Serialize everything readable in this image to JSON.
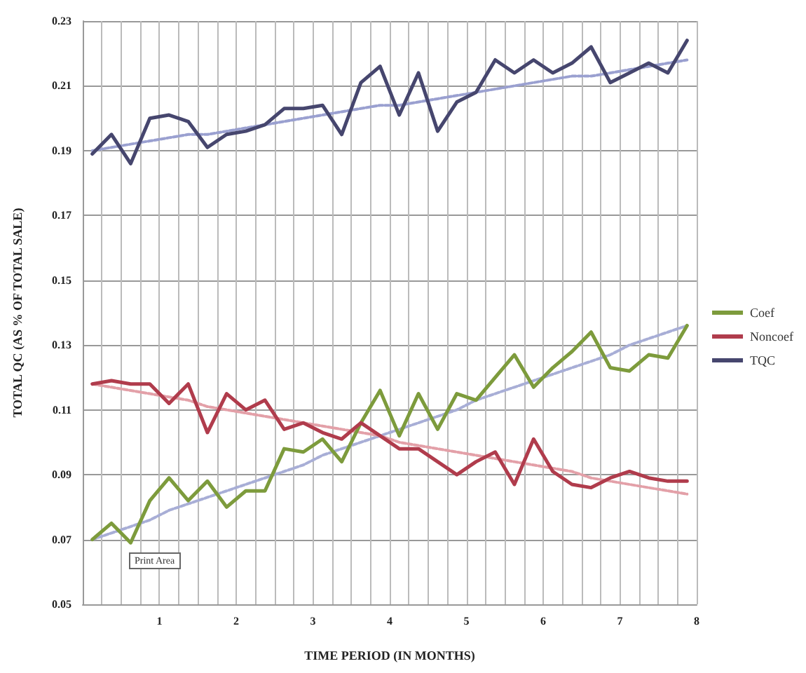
{
  "chart_data": {
    "type": "line",
    "xlabel": "TIME PERIOD (IN MONTHS)",
    "ylabel": "TOTAL QC (AS % OF TOTAL SALE)",
    "xlim": [
      0,
      8
    ],
    "ylim": [
      0.05,
      0.23
    ],
    "xticks": [
      {
        "value": 0.25,
        "label": null
      },
      {
        "value": 0.5,
        "label": null
      },
      {
        "value": 0.75,
        "label": null
      },
      1,
      {
        "value": 1.25,
        "label": null
      },
      {
        "value": 1.5,
        "label": null
      },
      {
        "value": 1.75,
        "label": null
      },
      2,
      {
        "value": 2.25,
        "label": null
      },
      {
        "value": 2.5,
        "label": null
      },
      {
        "value": 2.75,
        "label": null
      },
      3,
      {
        "value": 3.25,
        "label": null
      },
      {
        "value": 3.5,
        "label": null
      },
      {
        "value": 3.75,
        "label": null
      },
      4,
      {
        "value": 4.25,
        "label": null
      },
      {
        "value": 4.5,
        "label": null
      },
      {
        "value": 4.75,
        "label": null
      },
      5,
      {
        "value": 5.25,
        "label": null
      },
      {
        "value": 5.5,
        "label": null
      },
      {
        "value": 5.75,
        "label": null
      },
      6,
      {
        "value": 6.25,
        "label": null
      },
      {
        "value": 6.5,
        "label": null
      },
      {
        "value": 6.75,
        "label": null
      },
      7,
      {
        "value": 7.25,
        "label": null
      },
      {
        "value": 7.5,
        "label": null
      },
      {
        "value": 7.75,
        "label": null
      },
      8
    ],
    "yticks": [
      0.05,
      0.07,
      0.09,
      0.11,
      0.13,
      0.15,
      0.17,
      0.19,
      0.21,
      0.23
    ],
    "x": [
      0.125,
      0.375,
      0.625,
      0.875,
      1.125,
      1.375,
      1.625,
      1.875,
      2.125,
      2.375,
      2.625,
      2.875,
      3.125,
      3.375,
      3.625,
      3.875,
      4.125,
      4.375,
      4.625,
      4.875,
      5.125,
      5.375,
      5.625,
      5.875,
      6.125,
      6.375,
      6.625,
      6.875,
      7.125,
      7.375,
      7.625,
      7.875
    ],
    "grid": true,
    "legend": "right",
    "marker": "none",
    "annotations": [
      "Print Area"
    ],
    "series": [
      {
        "name": "Coef",
        "color": "#7d9b3c",
        "values": [
          0.07,
          0.075,
          0.069,
          0.082,
          0.089,
          0.082,
          0.088,
          0.08,
          0.085,
          0.085,
          0.098,
          0.097,
          0.101,
          0.094,
          0.106,
          0.116,
          0.102,
          0.115,
          0.104,
          0.115,
          0.113,
          0.12,
          0.127,
          0.117,
          0.123,
          0.128,
          0.134,
          0.123,
          0.122,
          0.127,
          0.126,
          0.136
        ]
      },
      {
        "name": "Noncoef",
        "color": "#b03c4c",
        "values": [
          0.118,
          0.119,
          0.118,
          0.118,
          0.112,
          0.118,
          0.103,
          0.115,
          0.11,
          0.113,
          0.104,
          0.106,
          0.103,
          0.101,
          0.106,
          0.102,
          0.098,
          0.098,
          0.094,
          0.09,
          0.094,
          0.097,
          0.087,
          0.101,
          0.091,
          0.087,
          0.086,
          0.089,
          0.091,
          0.089,
          0.088,
          0.088
        ]
      },
      {
        "name": "TQC",
        "color": "#46466e",
        "values": [
          0.189,
          0.195,
          0.186,
          0.2,
          0.201,
          0.199,
          0.191,
          0.195,
          0.196,
          0.198,
          0.203,
          0.203,
          0.204,
          0.195,
          0.211,
          0.216,
          0.201,
          0.214,
          0.196,
          0.205,
          0.208,
          0.218,
          0.214,
          0.218,
          0.214,
          0.217,
          0.222,
          0.211,
          0.214,
          0.217,
          0.214,
          0.224
        ]
      },
      {
        "type": "line",
        "values": [
          0.07,
          0.072,
          0.074,
          0.076,
          0.079,
          0.081,
          0.083,
          0.085,
          0.087,
          0.089,
          0.091,
          0.093,
          0.096,
          0.098,
          0.1,
          0.102,
          0.104,
          0.106,
          0.108,
          0.11,
          0.113,
          0.115,
          0.117,
          0.119,
          0.121,
          0.123,
          0.125,
          0.127,
          0.13,
          0.132,
          0.134,
          0.136
        ],
        "color": "#a8aed6",
        "line_style": "dashed"
      },
      {
        "type": "line",
        "values": [
          0.118,
          0.117,
          0.116,
          0.115,
          0.114,
          0.113,
          0.111,
          0.11,
          0.109,
          0.108,
          0.107,
          0.106,
          0.105,
          0.104,
          0.103,
          0.102,
          0.1,
          0.099,
          0.098,
          0.097,
          0.096,
          0.095,
          0.094,
          0.093,
          0.092,
          0.091,
          0.089,
          0.088,
          0.087,
          0.086,
          0.085,
          0.084
        ],
        "color": "#e3a0a8",
        "line_style": "dashed"
      },
      {
        "type": "line",
        "values": [
          0.19,
          0.191,
          0.192,
          0.193,
          0.194,
          0.195,
          0.195,
          0.196,
          0.197,
          0.198,
          0.199,
          0.2,
          0.201,
          0.202,
          0.203,
          0.204,
          0.204,
          0.205,
          0.206,
          0.207,
          0.208,
          0.209,
          0.21,
          0.211,
          0.212,
          0.213,
          0.213,
          0.214,
          0.215,
          0.216,
          0.217,
          0.218
        ],
        "color": "#9aa0d0",
        "line_style": "dashed"
      }
    ]
  }
}
